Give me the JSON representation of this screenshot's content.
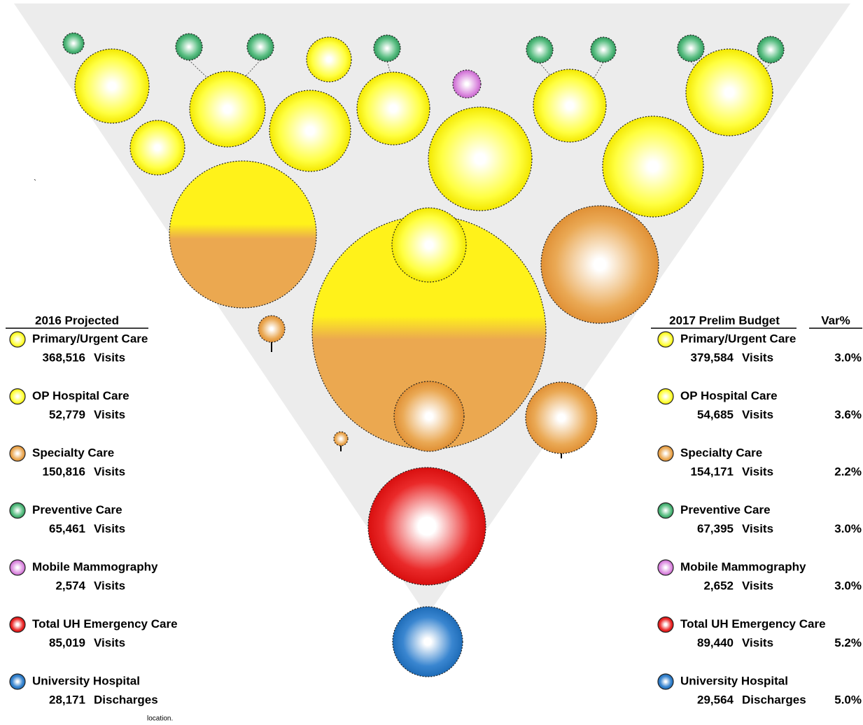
{
  "left": {
    "header": "2016 Projected",
    "items": [
      {
        "label": "Primary/Urgent Care",
        "value": "368,516",
        "unit": "Visits"
      },
      {
        "label": "OP Hospital Care",
        "value": "52,779",
        "unit": "Visits"
      },
      {
        "label": "Specialty Care",
        "value": "150,816",
        "unit": "Visits"
      },
      {
        "label": "Preventive Care",
        "value": "65,461",
        "unit": "Visits"
      },
      {
        "label": "Mobile Mammography",
        "value": "2,574",
        "unit": "Visits"
      },
      {
        "label": "Total UH Emergency Care",
        "value": "85,019",
        "unit": "Visits"
      },
      {
        "label": "University Hospital",
        "value": "28,171",
        "unit": "Discharges"
      }
    ]
  },
  "right": {
    "header": "2017 Prelim Budget",
    "var_header": "Var%",
    "items": [
      {
        "label": "Primary/Urgent Care",
        "value": "379,584",
        "unit": "Visits",
        "var": "3.0%"
      },
      {
        "label": "OP Hospital Care",
        "value": "54,685",
        "unit": "Visits",
        "var": "3.6%"
      },
      {
        "label": "Specialty Care",
        "value": "154,171",
        "unit": "Visits",
        "var": "2.2%"
      },
      {
        "label": "Preventive Care",
        "value": "67,395",
        "unit": "Visits",
        "var": "3.0%"
      },
      {
        "label": "Mobile Mammography",
        "value": "2,652",
        "unit": "Visits",
        "var": "3.0%"
      },
      {
        "label": "Total UH Emergency Care",
        "value": "89,440",
        "unit": "Visits",
        "var": "5.2%"
      },
      {
        "label": "University Hospital",
        "value": "29,564",
        "unit": "Discharges",
        "var": "5.0%"
      }
    ]
  },
  "notes": [
    "`",
    "location."
  ]
}
